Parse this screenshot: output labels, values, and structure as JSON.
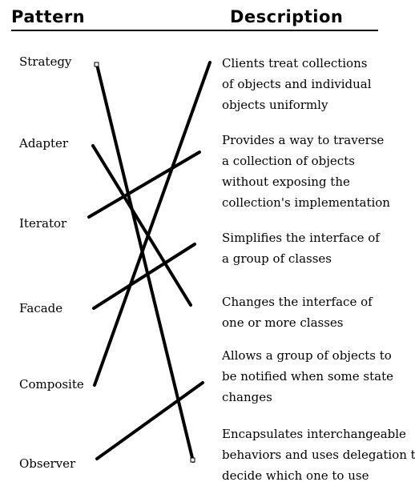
{
  "header": {
    "pattern": "Pattern",
    "description": "Description"
  },
  "patterns": [
    "Strategy",
    "Adapter",
    "Iterator",
    "Facade",
    "Composite",
    "Observer"
  ],
  "descriptions": [
    [
      "Clients treat collections",
      "of objects and individual",
      "objects uniformly"
    ],
    [
      "Provides a way to traverse",
      "a collection of objects",
      "without exposing the",
      "collection's implementation"
    ],
    [
      "Simplifies the interface of",
      "a group of classes"
    ],
    [
      "Changes the interface of",
      "one or more classes"
    ],
    [
      "Allows a group of objects to",
      "be notified when some state",
      "changes"
    ],
    [
      "Encapsulates interchangeable",
      "behaviors and uses delegation to",
      "decide which one to use"
    ]
  ],
  "matches": [
    {
      "pattern": "Strategy",
      "description": "Encapsulates interchangeable behaviors and uses delegation to decide which one to use"
    },
    {
      "pattern": "Adapter",
      "description": "Changes the interface of one or more classes"
    },
    {
      "pattern": "Iterator",
      "description": "Provides a way to traverse a collection of objects without exposing the collection's implementation"
    },
    {
      "pattern": "Facade",
      "description": "Simplifies the interface of a group of classes"
    },
    {
      "pattern": "Composite",
      "description": "Clients treat collections of objects and individual objects uniformly"
    },
    {
      "pattern": "Observer",
      "description": "Allows a group of objects to be notified when some state changes"
    }
  ]
}
